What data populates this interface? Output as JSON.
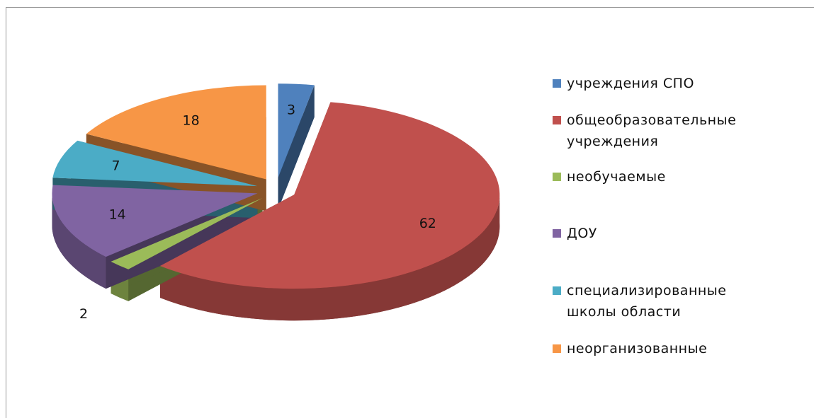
{
  "chart_data": {
    "type": "pie",
    "categories": [
      "учреждения  СПО",
      "общеобразовательные учреждения",
      "необучаемые",
      "ДОУ",
      "специализированные школы области",
      "неорганизованные"
    ],
    "values": [
      3,
      62,
      2,
      14,
      7,
      18
    ],
    "colors": [
      "#4f81bd",
      "#c0504d",
      "#9bbb59",
      "#8064a2",
      "#4bacc6",
      "#f79646"
    ],
    "legend": "right"
  }
}
